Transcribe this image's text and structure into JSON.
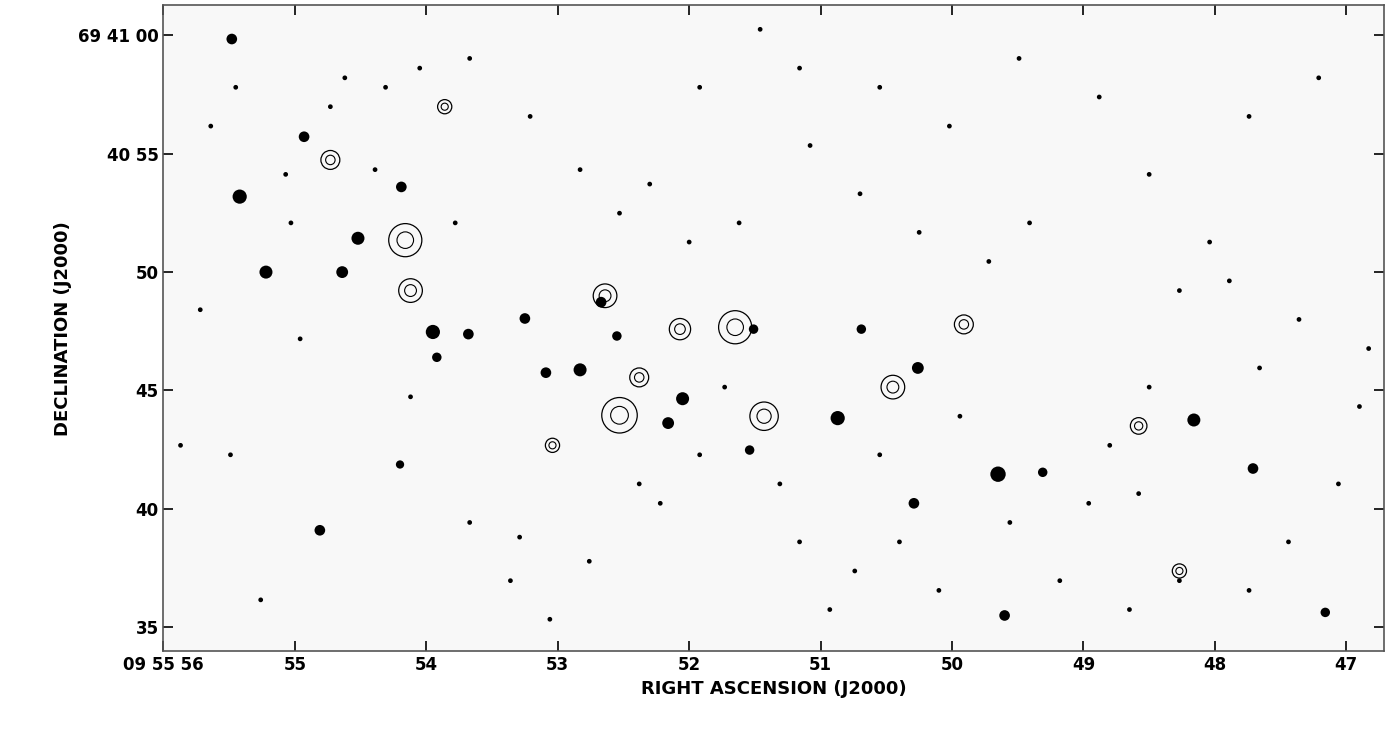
{
  "chart_data": {
    "type": "scatter",
    "xlabel": "RIGHT ASCENSION (J2000)",
    "ylabel": "DECLINATION (J2000)",
    "xlim": [
      56,
      46.71
    ],
    "ylim": [
      33.98,
      61.28
    ],
    "xticks": [
      {
        "value": 56,
        "label": "09 55 56"
      },
      55,
      54,
      53,
      52,
      51,
      50,
      49,
      48,
      47
    ],
    "yticks": [
      {
        "value": 60,
        "label": "69 41 00"
      },
      {
        "value": 55,
        "label": "40 55"
      },
      50,
      45,
      40,
      35
    ],
    "series": [
      {
        "type": "scatter",
        "color": "#000000",
        "marker": "o",
        "x": [
          55.42,
          55.22,
          54.52,
          54.19,
          54.64,
          53.95,
          53.68,
          53.92,
          53.09,
          52.83,
          52.16,
          52.05,
          50.87,
          50.26,
          49.65,
          49.31,
          48.16,
          47.71,
          50.29,
          49.6,
          54.81,
          54.2,
          51.54,
          50.69,
          51.51,
          52.55,
          53.25,
          52.67,
          55.48,
          54.93,
          47.16,
          55.64,
          55.45,
          55.07,
          55.03,
          54.73,
          54.62,
          54.31,
          54.39,
          54.12,
          53.78,
          53.67,
          53.29,
          53.36,
          53.06,
          52.76,
          52.38,
          52.22,
          51.92,
          51.73,
          51.31,
          51.16,
          50.93,
          50.74,
          50.55,
          50.4,
          50.1,
          49.94,
          49.56,
          49.18,
          48.96,
          48.8,
          48.5,
          48.27,
          47.89,
          47.66,
          47.36,
          47.06,
          47.44,
          47.74,
          48.27,
          48.65,
          48.04,
          48.5,
          47.74,
          47.21,
          48.88,
          49.49,
          50.02,
          50.55,
          51.16,
          51.46,
          51.92,
          52.3,
          52.53,
          52.83,
          53.21,
          53.67,
          54.05,
          54.96,
          55.72,
          55.87,
          55.49,
          55.26,
          48.58,
          46.9,
          46.83,
          49.41,
          49.72,
          50.25,
          50.7,
          51.08,
          51.62,
          52.0
        ],
        "y": [
          53.19,
          50.0,
          51.43,
          53.6,
          50.0,
          47.47,
          47.38,
          46.4,
          45.75,
          45.87,
          43.62,
          44.65,
          43.83,
          45.95,
          41.46,
          41.54,
          43.75,
          41.7,
          40.23,
          35.49,
          39.09,
          41.87,
          42.48,
          47.59,
          47.59,
          47.3,
          48.04,
          48.73,
          59.85,
          55.72,
          35.62,
          56.17,
          57.81,
          54.13,
          52.08,
          56.99,
          58.21,
          57.81,
          54.33,
          44.73,
          52.08,
          39.42,
          38.8,
          36.96,
          35.33,
          37.78,
          41.05,
          40.23,
          42.28,
          45.14,
          41.05,
          38.6,
          35.74,
          37.37,
          42.28,
          38.6,
          36.55,
          43.91,
          39.42,
          36.96,
          40.23,
          42.68,
          45.14,
          49.22,
          49.63,
          45.95,
          48.0,
          41.05,
          38.6,
          36.55,
          36.96,
          35.74,
          51.27,
          54.13,
          56.58,
          58.21,
          57.4,
          59.03,
          56.17,
          57.81,
          58.62,
          60.26,
          57.81,
          53.72,
          52.49,
          54.33,
          56.58,
          59.03,
          58.62,
          47.18,
          48.41,
          42.68,
          42.28,
          36.15,
          40.64,
          44.32,
          46.77,
          52.08,
          50.45,
          51.68,
          53.31,
          55.35,
          52.08,
          51.27
        ],
        "size": [
          0.6,
          0.55,
          0.55,
          0.45,
          0.5,
          0.6,
          0.45,
          0.4,
          0.45,
          0.55,
          0.5,
          0.55,
          0.6,
          0.5,
          0.65,
          0.4,
          0.55,
          0.45,
          0.45,
          0.45,
          0.45,
          0.35,
          0.4,
          0.4,
          0.4,
          0.4,
          0.45,
          0.45,
          0.45,
          0.45,
          0.4,
          0.2,
          0.2,
          0.2,
          0.2,
          0.2,
          0.2,
          0.2,
          0.2,
          0.2,
          0.2,
          0.2,
          0.2,
          0.2,
          0.2,
          0.2,
          0.2,
          0.2,
          0.2,
          0.2,
          0.2,
          0.2,
          0.2,
          0.2,
          0.2,
          0.2,
          0.2,
          0.2,
          0.2,
          0.2,
          0.2,
          0.2,
          0.2,
          0.2,
          0.2,
          0.2,
          0.2,
          0.2,
          0.2,
          0.2,
          0.2,
          0.2,
          0.2,
          0.2,
          0.2,
          0.2,
          0.2,
          0.2,
          0.2,
          0.2,
          0.2,
          0.2,
          0.2,
          0.2,
          0.2,
          0.2,
          0.2,
          0.2,
          0.2,
          0.2,
          0.2,
          0.2,
          0.2,
          0.2,
          0.2,
          0.2,
          0.2,
          0.2,
          0.2,
          0.2,
          0.2,
          0.2,
          0.2,
          0.2
        ]
      },
      {
        "type": "contour",
        "color": "#000000",
        "marker": "o",
        "x": [
          54.16,
          54.12,
          52.53,
          52.64,
          51.65,
          51.43,
          50.45,
          52.07,
          52.38,
          49.91,
          48.58,
          53.04,
          54.73,
          53.86,
          48.27
        ],
        "y": [
          51.35,
          49.22,
          43.95,
          49.0,
          47.67,
          43.91,
          45.14,
          47.59,
          45.55,
          47.79,
          43.5,
          42.68,
          54.74,
          56.99,
          37.37
        ],
        "size": [
          1.4,
          1.0,
          1.5,
          1.0,
          1.4,
          1.2,
          1.0,
          0.9,
          0.8,
          0.8,
          0.7,
          0.6,
          0.8,
          0.6,
          0.6
        ]
      }
    ]
  }
}
